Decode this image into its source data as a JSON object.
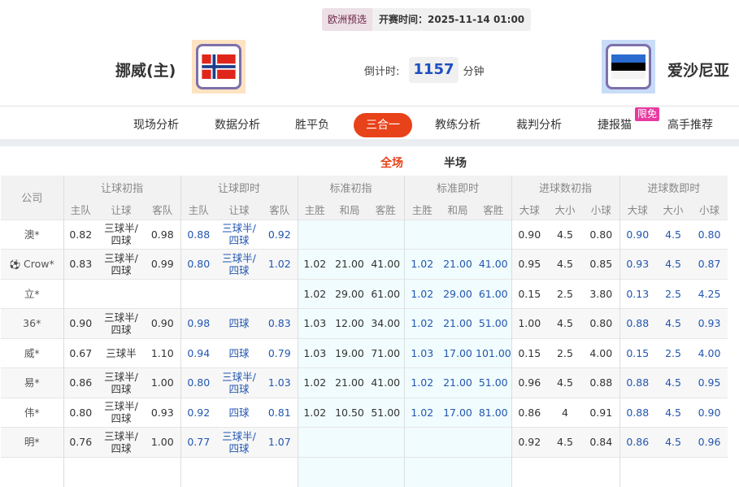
{
  "match": {
    "league": "欧洲预选",
    "kickoff": "开赛时间：2025-11-14 01:00",
    "home": "挪威(主)",
    "away": "爱沙尼亚",
    "countdown_label": "倒计时:",
    "countdown_value": "1157",
    "countdown_unit": "分钟"
  },
  "nav": {
    "items": [
      "现场分析",
      "数据分析",
      "胜平负",
      "三合一",
      "教练分析",
      "裁判分析",
      "捷报猫",
      "高手推荐"
    ],
    "active": "三合一",
    "badge": "限免"
  },
  "subtabs": {
    "items": [
      "全场",
      "半场"
    ],
    "active": "全场"
  },
  "table": {
    "company_header": "公司",
    "groups": [
      "让球初指",
      "让球即时",
      "标准初指",
      "标准即时",
      "进球数初指",
      "进球数即时"
    ],
    "subheaders": [
      [
        "主队",
        "让球",
        "客队"
      ],
      [
        "主队",
        "让球",
        "客队"
      ],
      [
        "主胜",
        "和局",
        "客胜"
      ],
      [
        "主胜",
        "和局",
        "客胜"
      ],
      [
        "大球",
        "大小",
        "小球"
      ],
      [
        "大球",
        "大小",
        "小球"
      ]
    ],
    "rows": [
      {
        "company": "澳*",
        "cells": [
          "0.82",
          "三球半/四球",
          "0.98",
          "0.88",
          "三球半/四球",
          "0.92",
          "",
          "",
          "",
          "",
          "",
          "",
          "0.90",
          "4.5",
          "0.80",
          "0.90",
          "4.5",
          "0.80"
        ]
      },
      {
        "company": "Crow*",
        "icon": "soccer-ball",
        "cells": [
          "0.83",
          "三球半/四球",
          "0.99",
          "0.80",
          "三球半/四球",
          "1.02",
          "1.02",
          "21.00",
          "41.00",
          "1.02",
          "21.00",
          "41.00",
          "0.95",
          "4.5",
          "0.85",
          "0.93",
          "4.5",
          "0.87"
        ]
      },
      {
        "company": "立*",
        "cells": [
          "",
          "",
          "",
          "",
          "",
          "",
          "1.02",
          "29.00",
          "61.00",
          "1.02",
          "29.00",
          "61.00",
          "0.15",
          "2.5",
          "3.80",
          "0.13",
          "2.5",
          "4.25"
        ]
      },
      {
        "company": "36*",
        "cells": [
          "0.90",
          "三球半/四球",
          "0.90",
          "0.98",
          "四球",
          "0.83",
          "1.03",
          "12.00",
          "34.00",
          "1.02",
          "21.00",
          "51.00",
          "1.00",
          "4.5",
          "0.80",
          "0.88",
          "4.5",
          "0.93"
        ]
      },
      {
        "company": "威*",
        "cells": [
          "0.67",
          "三球半",
          "1.10",
          "0.94",
          "四球",
          "0.79",
          "1.03",
          "19.00",
          "71.00",
          "1.03",
          "17.00",
          "101.00",
          "0.15",
          "2.5",
          "4.00",
          "0.15",
          "2.5",
          "4.00"
        ]
      },
      {
        "company": "易*",
        "cells": [
          "0.86",
          "三球半/四球",
          "1.00",
          "0.80",
          "三球半/四球",
          "1.03",
          "1.02",
          "21.00",
          "41.00",
          "1.02",
          "21.00",
          "51.00",
          "0.96",
          "4.5",
          "0.88",
          "0.88",
          "4.5",
          "0.95"
        ]
      },
      {
        "company": "伟*",
        "cells": [
          "0.80",
          "三球半/四球",
          "0.93",
          "0.92",
          "四球",
          "0.81",
          "1.02",
          "10.50",
          "51.00",
          "1.02",
          "17.00",
          "81.00",
          "0.86",
          "4",
          "0.91",
          "0.88",
          "4.5",
          "0.90"
        ]
      },
      {
        "company": "明*",
        "cells": [
          "0.76",
          "三球半/四球",
          "1.00",
          "0.77",
          "三球半/四球",
          "1.07",
          "",
          "",
          "",
          "",
          "",
          "",
          "0.92",
          "4.5",
          "0.84",
          "0.86",
          "4.5",
          "0.96"
        ]
      },
      {
        "company": "",
        "cells": [
          "",
          "",
          "",
          "",
          "",
          "",
          "",
          "",
          "",
          "",
          "",
          "",
          "",
          "",
          "",
          "",
          "",
          ""
        ]
      }
    ]
  },
  "colors": {
    "accent": "#e8421a",
    "live_odds": "#2256b0",
    "badge": "#e83aa0"
  }
}
